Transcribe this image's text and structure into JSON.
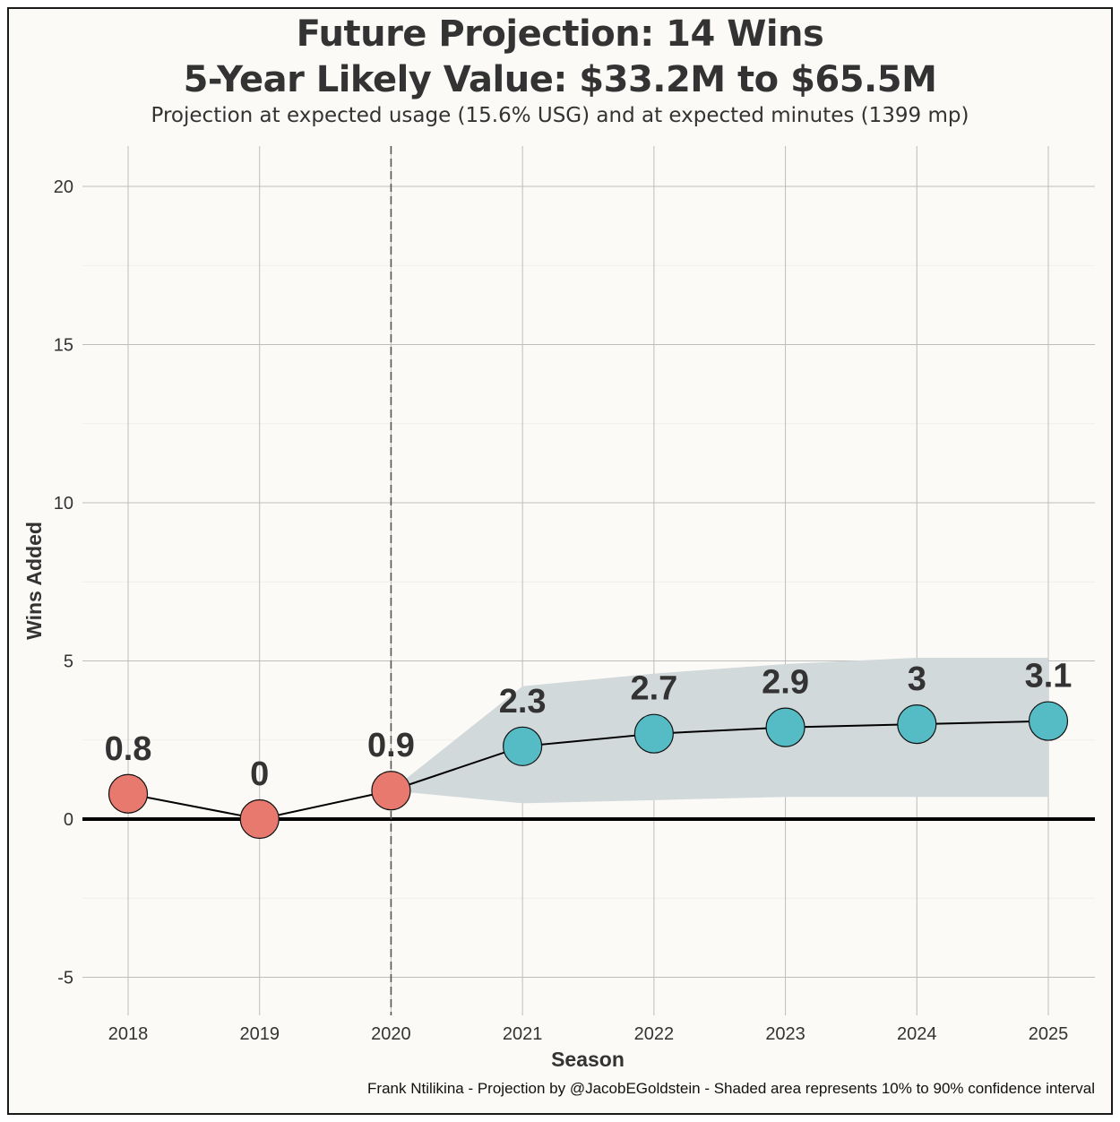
{
  "chart_data": {
    "type": "line",
    "title": "Future Projection: 14 Wins",
    "title_line2": "5-Year Likely Value: $33.2M to $65.5M",
    "subtitle": "Projection at expected usage (15.6% USG) and at expected minutes (1399 mp)",
    "xlabel": "Season",
    "ylabel": "Wins Added",
    "caption": "Frank Ntilikina - Projection by @JacobEGoldstein - Shaded area represents 10% to 90% confidence interval",
    "x": [
      2018,
      2019,
      2020,
      2021,
      2022,
      2023,
      2024,
      2025
    ],
    "values": [
      0.8,
      0,
      0.9,
      2.3,
      2.7,
      2.9,
      3,
      3.1
    ],
    "point_labels": [
      "0.8",
      "0",
      "0.9",
      "2.3",
      "2.7",
      "2.9",
      "3",
      "3.1"
    ],
    "x_tick_labels": [
      "2018",
      "2019",
      "2020",
      "2021",
      "2022",
      "2023",
      "2024",
      "2025"
    ],
    "y_ticks": [
      -5,
      0,
      5,
      10,
      15,
      20
    ],
    "y_tick_labels": [
      "-5",
      "0",
      "5",
      "10",
      "15",
      "20"
    ],
    "xlim": [
      2017.7,
      2025.35
    ],
    "ylim": [
      -6.2,
      21.5
    ],
    "projection_start": 2020,
    "confidence_band": {
      "x": [
        2020,
        2021,
        2022,
        2023,
        2024,
        2025
      ],
      "lower": [
        0.9,
        0.5,
        0.6,
        0.7,
        0.7,
        0.7
      ],
      "upper": [
        0.9,
        4.2,
        4.6,
        4.9,
        5.1,
        5.1
      ]
    },
    "colors": {
      "historical": "#e8796f",
      "projected": "#55bbc4",
      "band": "#d2d9db",
      "zero_line": "#000000",
      "grid": "#bdbdbd",
      "background": "#fcfaf7"
    },
    "grid": true
  }
}
